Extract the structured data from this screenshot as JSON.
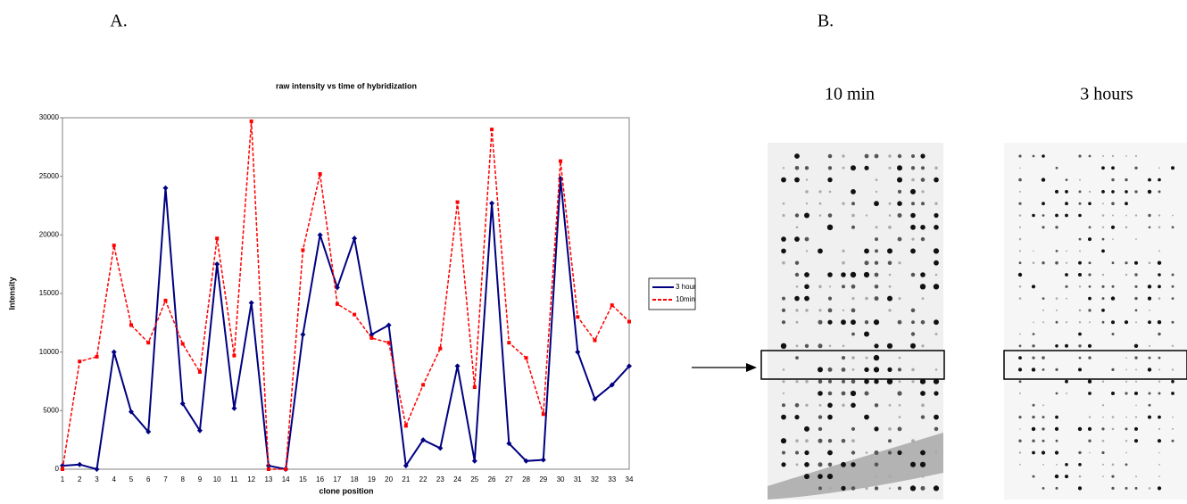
{
  "panels": {
    "a_label": "A.",
    "b_label": "B.",
    "blot_labels": [
      "10 min",
      "3 hours"
    ]
  },
  "chart_data": {
    "type": "line",
    "title": "raw intensity vs time of hybridization",
    "x_label": "clone position",
    "y_label": "Intensity",
    "categories": [
      "1",
      "2",
      "3",
      "4",
      "5",
      "6",
      "7",
      "8",
      "9",
      "10",
      "11",
      "12",
      "13",
      "14",
      "15",
      "16",
      "17",
      "18",
      "19",
      "20",
      "21",
      "22",
      "23",
      "24",
      "25",
      "26",
      "27",
      "28",
      "29",
      "30",
      "31",
      "32",
      "33",
      "34"
    ],
    "series": [
      {
        "name": "3 hour",
        "color": "#000080",
        "values": [
          300,
          400,
          0,
          10000,
          4900,
          3200,
          24000,
          5600,
          3300,
          17500,
          5200,
          14200,
          300,
          0,
          11500,
          20000,
          15500,
          19700,
          11500,
          12300,
          300,
          2500,
          1800,
          8800,
          700,
          22700,
          2200,
          700,
          800,
          24800,
          10000,
          6000,
          7200,
          8800
        ]
      },
      {
        "name": "10min",
        "color": "#ff0000",
        "values": [
          0,
          9200,
          9600,
          19100,
          12300,
          10800,
          14400,
          10700,
          8300,
          19700,
          9700,
          29700,
          0,
          0,
          18700,
          25200,
          14100,
          13200,
          11200,
          10800,
          3700,
          7200,
          10300,
          22800,
          7000,
          29000,
          10800,
          9500,
          4700,
          26300,
          13000,
          11000,
          14000,
          12600
        ]
      }
    ],
    "ylim": [
      0,
      30000
    ],
    "yticks": [
      0,
      5000,
      10000,
      15000,
      20000,
      25000,
      30000
    ],
    "legend": "right"
  }
}
